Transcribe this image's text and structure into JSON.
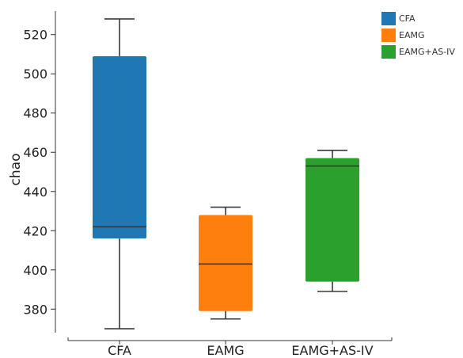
{
  "chart_data": {
    "type": "boxplot",
    "ylabel": "chao",
    "xlabel": "",
    "ylim": [
      368,
      532
    ],
    "yticks": [
      380,
      400,
      420,
      440,
      460,
      480,
      500,
      520
    ],
    "categories": [
      "CFA",
      "EAMG",
      "EAMG+AS-IV"
    ],
    "legend_position": "top-right",
    "grid": false,
    "series": [
      {
        "name": "CFA",
        "color": "#1f77b4",
        "min": 370,
        "q1": 416,
        "median": 422,
        "q3": 509,
        "max": 528
      },
      {
        "name": "EAMG",
        "color": "#ff7f0e",
        "min": 375,
        "q1": 379,
        "median": 403,
        "q3": 428,
        "max": 432
      },
      {
        "name": "EAMG+AS-IV",
        "color": "#2ca02c",
        "min": 389,
        "q1": 394,
        "median": 453,
        "q3": 457,
        "max": 461
      }
    ]
  }
}
